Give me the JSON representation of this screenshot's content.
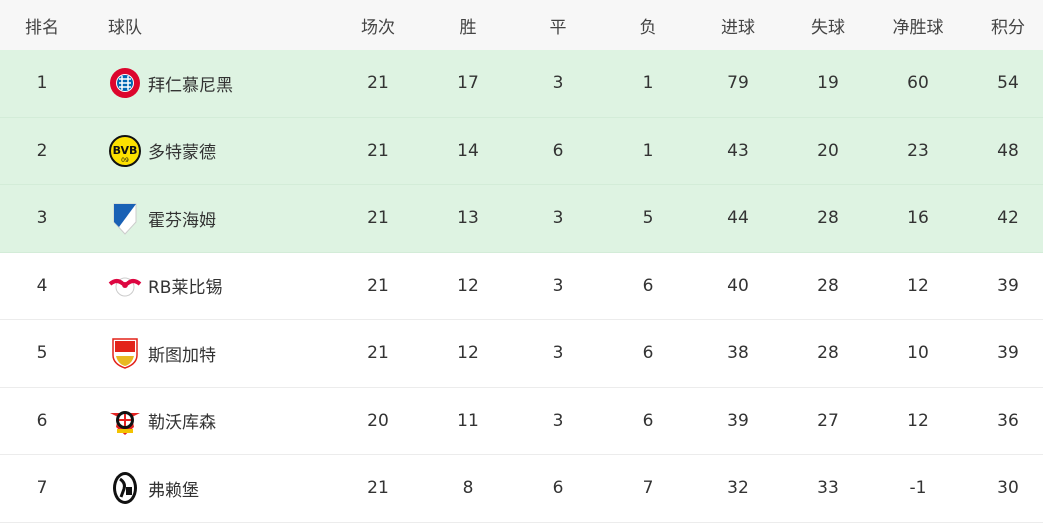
{
  "headers": [
    "排名",
    "球队",
    "场次",
    "胜",
    "平",
    "负",
    "进球",
    "失球",
    "净胜球",
    "积分"
  ],
  "highlight_color": "#def3e2",
  "rows": [
    {
      "rank": "1",
      "team": "拜仁慕尼黑",
      "logo": "bayern-logo",
      "played": "21",
      "won": "17",
      "drawn": "3",
      "lost": "1",
      "gf": "79",
      "ga": "19",
      "gd": "60",
      "pts": "54",
      "highlight": true
    },
    {
      "rank": "2",
      "team": "多特蒙德",
      "logo": "dortmund-logo",
      "played": "21",
      "won": "14",
      "drawn": "6",
      "lost": "1",
      "gf": "43",
      "ga": "20",
      "gd": "23",
      "pts": "48",
      "highlight": true
    },
    {
      "rank": "3",
      "team": "霍芬海姆",
      "logo": "hoffenheim-logo",
      "played": "21",
      "won": "13",
      "drawn": "3",
      "lost": "5",
      "gf": "44",
      "ga": "28",
      "gd": "16",
      "pts": "42",
      "highlight": true
    },
    {
      "rank": "4",
      "team": "RB莱比锡",
      "logo": "leipzig-logo",
      "played": "21",
      "won": "12",
      "drawn": "3",
      "lost": "6",
      "gf": "40",
      "ga": "28",
      "gd": "12",
      "pts": "39",
      "highlight": false
    },
    {
      "rank": "5",
      "team": "斯图加特",
      "logo": "stuttgart-logo",
      "played": "21",
      "won": "12",
      "drawn": "3",
      "lost": "6",
      "gf": "38",
      "ga": "28",
      "gd": "10",
      "pts": "39",
      "highlight": false
    },
    {
      "rank": "6",
      "team": "勒沃库森",
      "logo": "leverkusen-logo",
      "played": "20",
      "won": "11",
      "drawn": "3",
      "lost": "6",
      "gf": "39",
      "ga": "27",
      "gd": "12",
      "pts": "36",
      "highlight": false
    },
    {
      "rank": "7",
      "team": "弗赖堡",
      "logo": "freiburg-logo",
      "played": "21",
      "won": "8",
      "drawn": "6",
      "lost": "7",
      "gf": "32",
      "ga": "33",
      "gd": "-1",
      "pts": "30",
      "highlight": false
    }
  ]
}
